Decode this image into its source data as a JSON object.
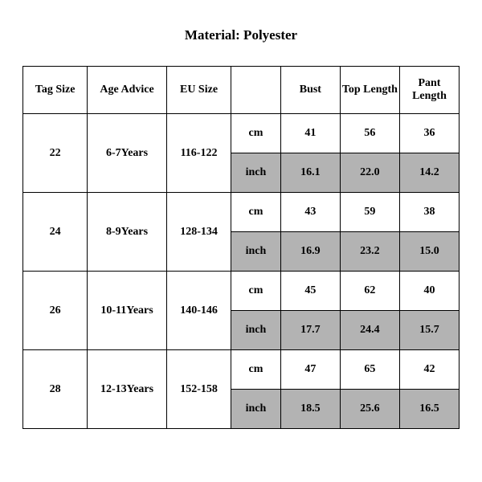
{
  "title": "Material: Polyester",
  "table": {
    "columns": [
      "Tag Size",
      "Age Advice",
      "EU Size",
      "",
      "Bust",
      "Top Length",
      "Pant Length"
    ],
    "unit_labels": {
      "cm": "cm",
      "inch": "inch"
    },
    "shaded_bg": "#b3b3b3",
    "border_color": "#000000",
    "font_family": "Times New Roman",
    "header_fontsize": 14,
    "cell_fontsize": 14,
    "rows": [
      {
        "tag_size": "22",
        "age_advice": "6-7Years",
        "eu_size": "116-122",
        "cm": {
          "bust": "41",
          "top_length": "56",
          "pant_length": "36"
        },
        "inch": {
          "bust": "16.1",
          "top_length": "22.0",
          "pant_length": "14.2"
        }
      },
      {
        "tag_size": "24",
        "age_advice": "8-9Years",
        "eu_size": "128-134",
        "cm": {
          "bust": "43",
          "top_length": "59",
          "pant_length": "38"
        },
        "inch": {
          "bust": "16.9",
          "top_length": "23.2",
          "pant_length": "15.0"
        }
      },
      {
        "tag_size": "26",
        "age_advice": "10-11Years",
        "eu_size": "140-146",
        "cm": {
          "bust": "45",
          "top_length": "62",
          "pant_length": "40"
        },
        "inch": {
          "bust": "17.7",
          "top_length": "24.4",
          "pant_length": "15.7"
        }
      },
      {
        "tag_size": "28",
        "age_advice": "12-13Years",
        "eu_size": "152-158",
        "cm": {
          "bust": "47",
          "top_length": "65",
          "pant_length": "42"
        },
        "inch": {
          "bust": "18.5",
          "top_length": "25.6",
          "pant_length": "16.5"
        }
      }
    ]
  }
}
